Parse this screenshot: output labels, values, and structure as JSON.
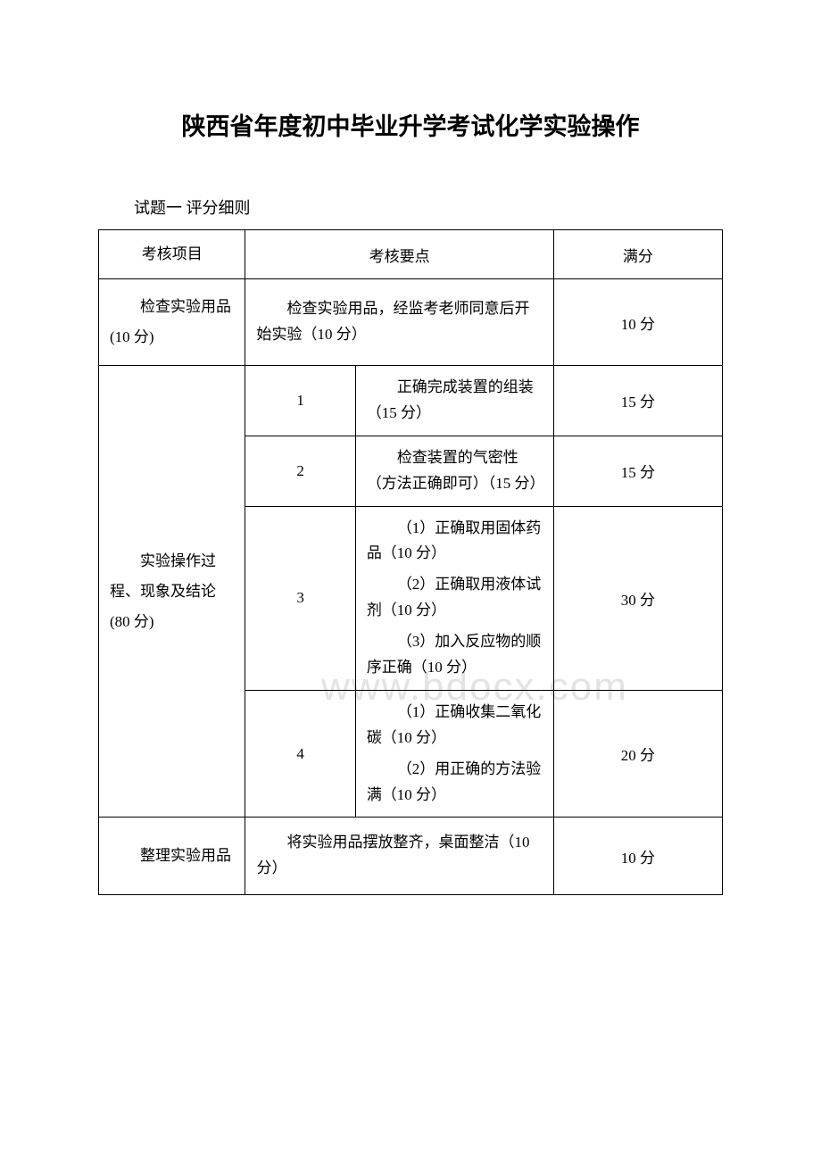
{
  "title": "陕西省年度初中毕业升学考试化学实验操作",
  "subtitle": "试题一 评分细则",
  "watermark": "www.bdocx.com",
  "table": {
    "headers": {
      "col1": "考核项目",
      "col2": "考核要点",
      "col4": "满分"
    },
    "rows": {
      "section1": {
        "category": "检查实验用品",
        "categoryScore": "(10 分)",
        "desc": "检查实验用品，经监考老师同意后开始实验（10 分）",
        "score": "10 分"
      },
      "section2": {
        "category": "实验操作过程、现象及结论",
        "categoryScore": "(80 分)",
        "items": [
          {
            "num": "1",
            "desc": "正确完成装置的组装（15 分）",
            "score": "15 分"
          },
          {
            "num": "2",
            "desc": "检查装置的气密性（方法正确即可）（15 分）",
            "score": "15 分"
          },
          {
            "num": "3",
            "desc1": "（1）正确取用固体药品（10 分）",
            "desc2": "（2）正确取用液体试剂（10 分）",
            "desc3": "（3）加入反应物的顺序正确（10 分）",
            "score": "30 分"
          },
          {
            "num": "4",
            "desc1": "（1）正确收集二氧化碳（10 分）",
            "desc2": "（2）用正确的方法验满（10 分）",
            "score": "20 分"
          }
        ]
      },
      "section3": {
        "category": "整理实验用品",
        "desc": "将实验用品摆放整齐，桌面整洁（10 分）",
        "score": "10 分"
      }
    }
  }
}
